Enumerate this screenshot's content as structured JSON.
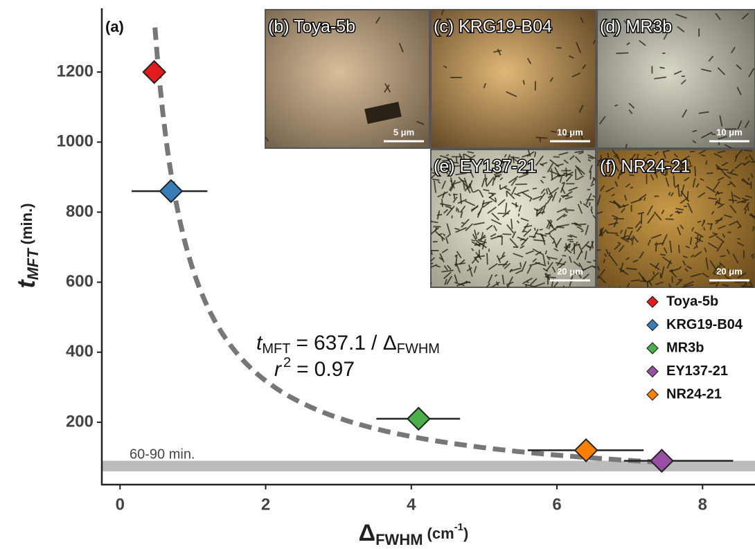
{
  "chart_data": {
    "type": "scatter",
    "panel_label": "(a)",
    "x_label": {
      "symbol": "Δ",
      "sub": "FWHM",
      "unit": "(cm",
      "sup": "-1",
      "close": ")"
    },
    "y_label": {
      "symbol": "t",
      "sub": "MFT",
      "unit": "(min.)"
    },
    "xlim": [
      -0.25,
      8.72
    ],
    "xticks": [
      0,
      2,
      4,
      6,
      8
    ],
    "ylim": [
      22,
      1382
    ],
    "yticks": [
      200,
      400,
      600,
      800,
      1000,
      1200
    ],
    "series": [
      {
        "name": "Toya-5b",
        "color": "#e41a1c",
        "x": [
          0.47
        ],
        "values": [
          1200
        ],
        "xerr_minus": [
          null
        ],
        "xerr_plus": [
          null
        ]
      },
      {
        "name": "KRG19-B04",
        "color": "#377eb8",
        "x": [
          0.7
        ],
        "values": [
          860
        ],
        "xerr_minus": [
          0.54
        ],
        "xerr_plus": [
          0.5
        ]
      },
      {
        "name": "MR3b",
        "color": "#4daf4a",
        "x": [
          4.1
        ],
        "values": [
          210
        ],
        "xerr_minus": [
          0.58
        ],
        "xerr_plus": [
          0.57
        ]
      },
      {
        "name": "EY137-21",
        "color": "#984ea3",
        "x": [
          7.44
        ],
        "values": [
          90
        ],
        "xerr_minus": [
          0.52
        ],
        "xerr_plus": [
          0.98
        ]
      },
      {
        "name": "NR24-21",
        "color": "#ff7f00",
        "x": [
          6.4
        ],
        "values": [
          120
        ],
        "xerr_minus": [
          0.8
        ],
        "xerr_plus": [
          0.79
        ]
      }
    ],
    "fit": {
      "coefficient": 637.1,
      "x_range": [
        0.48,
        7.44
      ],
      "color": "#777777",
      "equation": {
        "symbol": "t",
        "sub": "MFT",
        "eq": "=",
        "div": "/ Δ",
        "den_sub": "FWHM"
      },
      "r2": {
        "symbol": "r",
        "sup": "2",
        "eq": "=",
        "value": 0.97
      }
    },
    "band": {
      "range": [
        60,
        90
      ],
      "label": "60-90 min.",
      "color": "#bbbbbb"
    },
    "insets": [
      {
        "label": "(b) Toya-5b",
        "scale": "5 μm"
      },
      {
        "label": "(c) KRG19-B04",
        "scale": "10 μm"
      },
      {
        "label": "(d) MR3b",
        "scale": "10 μm"
      },
      {
        "label": "(e) EY137-21",
        "scale": "20 μm"
      },
      {
        "label": "(f) NR24-21",
        "scale": "20 μm"
      }
    ]
  }
}
